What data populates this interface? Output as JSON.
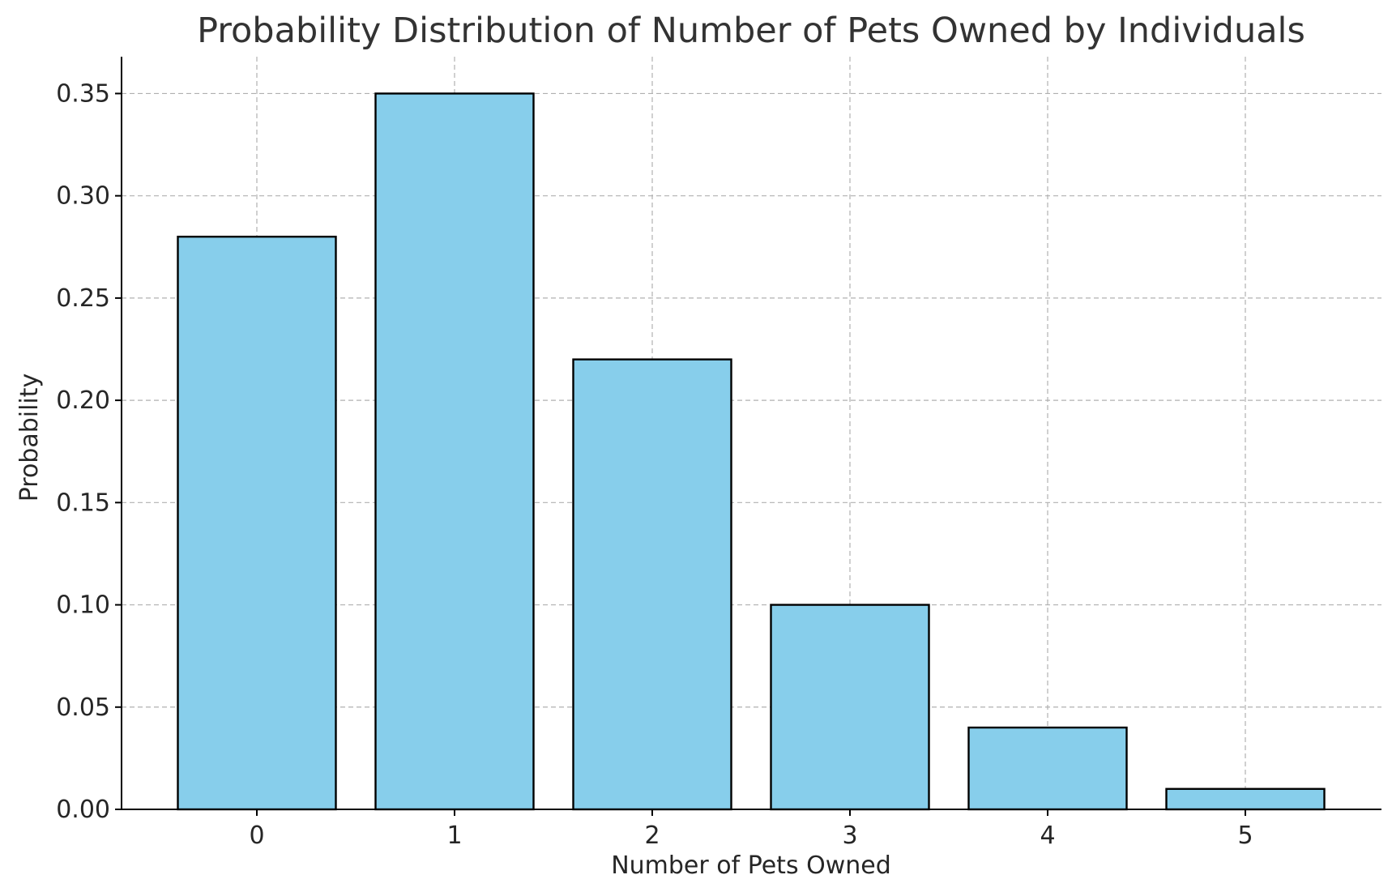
{
  "chart_data": {
    "type": "bar",
    "title": "Probability Distribution of Number of Pets Owned by Individuals",
    "xlabel": "Number of Pets Owned",
    "ylabel": "Probability",
    "categories": [
      "0",
      "1",
      "2",
      "3",
      "4",
      "5"
    ],
    "values": [
      0.28,
      0.35,
      0.22,
      0.1,
      0.04,
      0.01
    ],
    "ylim": [
      0,
      0.368
    ],
    "yticks": [
      "0.00",
      "0.05",
      "0.10",
      "0.15",
      "0.20",
      "0.25",
      "0.30",
      "0.35"
    ],
    "grid": true,
    "legend": "none",
    "colors": {
      "bar_fill": "#87ceeb",
      "bar_edge": "#000000",
      "grid": "#b0b0b0"
    }
  }
}
